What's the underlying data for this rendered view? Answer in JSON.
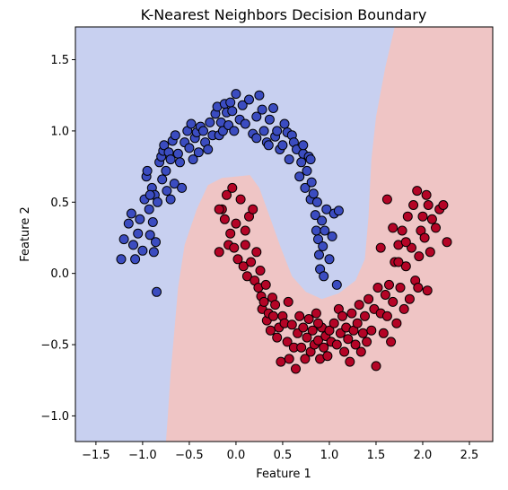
{
  "chart_data": {
    "type": "scatter",
    "title": "K-Nearest Neighbors Decision Boundary",
    "xlabel": "Feature 1",
    "ylabel": "Feature 2",
    "xlim": [
      -1.72,
      2.75
    ],
    "ylim": [
      -1.18,
      1.73
    ],
    "xticks": [
      "−1.5",
      "−1.0",
      "−0.5",
      "0.0",
      "0.5",
      "1.0",
      "1.5",
      "2.0",
      "2.5"
    ],
    "xtick_values": [
      -1.5,
      -1.0,
      -0.5,
      0.0,
      0.5,
      1.0,
      1.5,
      2.0,
      2.5
    ],
    "yticks": [
      "−1.0",
      "−0.5",
      "0.0",
      "0.5",
      "1.0",
      "1.5"
    ],
    "ytick_values": [
      -1.0,
      -0.5,
      0.0,
      0.5,
      1.0,
      1.5
    ],
    "grid": false,
    "colors": {
      "class_0_point": "#3b4cc0",
      "class_1_point": "#b40426",
      "class_0_region": "#c8d0f0",
      "class_1_region": "#efc5c5",
      "point_edge": "#000000"
    },
    "decision_boundary": [
      [
        -0.75,
        -1.18
      ],
      [
        -0.73,
        -1.0
      ],
      [
        -0.7,
        -0.7
      ],
      [
        -0.66,
        -0.4
      ],
      [
        -0.62,
        -0.1
      ],
      [
        -0.55,
        0.2
      ],
      [
        -0.42,
        0.45
      ],
      [
        -0.3,
        0.62
      ],
      [
        -0.15,
        0.67
      ],
      [
        0.15,
        0.69
      ],
      [
        0.25,
        0.6
      ],
      [
        0.35,
        0.42
      ],
      [
        0.48,
        0.18
      ],
      [
        0.6,
        -0.02
      ],
      [
        0.75,
        -0.13
      ],
      [
        0.92,
        -0.18
      ],
      [
        1.1,
        -0.14
      ],
      [
        1.28,
        -0.05
      ],
      [
        1.38,
        0.1
      ],
      [
        1.42,
        0.4
      ],
      [
        1.45,
        0.8
      ],
      [
        1.5,
        1.1
      ],
      [
        1.6,
        1.45
      ],
      [
        1.7,
        1.73
      ]
    ],
    "series": [
      {
        "class": 0,
        "points": [
          [
            -1.23,
            0.1
          ],
          [
            -1.2,
            0.24
          ],
          [
            -1.15,
            0.35
          ],
          [
            -1.12,
            0.42
          ],
          [
            -1.1,
            0.2
          ],
          [
            -1.08,
            0.1
          ],
          [
            -1.05,
            0.28
          ],
          [
            -1.03,
            0.38
          ],
          [
            -1.0,
            0.16
          ],
          [
            -0.98,
            0.52
          ],
          [
            -0.96,
            0.68
          ],
          [
            -0.95,
            0.72
          ],
          [
            -0.93,
            0.45
          ],
          [
            -0.92,
            0.27
          ],
          [
            -0.9,
            0.6
          ],
          [
            -0.89,
            0.36
          ],
          [
            -0.88,
            0.15
          ],
          [
            -0.87,
            0.55
          ],
          [
            -0.86,
            0.22
          ],
          [
            -0.85,
            -0.13
          ],
          [
            -0.84,
            0.5
          ],
          [
            -0.82,
            0.78
          ],
          [
            -0.8,
            0.82
          ],
          [
            -0.79,
            0.66
          ],
          [
            -0.78,
            0.86
          ],
          [
            -0.77,
            0.9
          ],
          [
            -0.75,
            0.72
          ],
          [
            -0.74,
            0.58
          ],
          [
            -0.72,
            0.85
          ],
          [
            -0.7,
            0.8
          ],
          [
            -0.68,
            0.93
          ],
          [
            -0.66,
            0.63
          ],
          [
            -0.65,
            0.97
          ],
          [
            -0.62,
            0.84
          ],
          [
            -0.6,
            0.78
          ],
          [
            -0.58,
            0.6
          ],
          [
            -0.55,
            0.92
          ],
          [
            -0.52,
            1.0
          ],
          [
            -0.5,
            0.88
          ],
          [
            -0.48,
            1.05
          ],
          [
            -0.46,
            0.8
          ],
          [
            -0.44,
            0.95
          ],
          [
            -0.42,
            0.99
          ],
          [
            -0.4,
            0.85
          ],
          [
            -0.38,
            1.03
          ],
          [
            -0.35,
            1.0
          ],
          [
            -0.33,
            0.92
          ],
          [
            -0.3,
            0.87
          ],
          [
            -0.28,
            1.06
          ],
          [
            -0.25,
            0.97
          ],
          [
            -0.22,
            1.12
          ],
          [
            -0.2,
            1.17
          ],
          [
            -0.18,
            0.97
          ],
          [
            -0.16,
            1.06
          ],
          [
            -0.14,
            1.0
          ],
          [
            -0.12,
            1.19
          ],
          [
            -0.1,
            1.13
          ],
          [
            -0.08,
            1.04
          ],
          [
            -0.06,
            1.2
          ],
          [
            -0.04,
            1.14
          ],
          [
            -0.02,
            1.0
          ],
          [
            0.0,
            1.26
          ],
          [
            0.04,
            1.08
          ],
          [
            0.07,
            1.18
          ],
          [
            0.1,
            1.05
          ],
          [
            0.14,
            1.22
          ],
          [
            0.18,
            0.98
          ],
          [
            0.22,
            1.1
          ],
          [
            0.25,
            1.25
          ],
          [
            0.28,
            1.15
          ],
          [
            0.3,
            1.0
          ],
          [
            0.33,
            0.92
          ],
          [
            0.36,
            1.08
          ],
          [
            0.4,
            1.16
          ],
          [
            0.42,
            0.96
          ],
          [
            0.44,
            1.0
          ],
          [
            0.47,
            0.87
          ],
          [
            0.5,
            0.9
          ],
          [
            0.52,
            1.05
          ],
          [
            0.55,
            0.99
          ],
          [
            0.57,
            0.8
          ],
          [
            0.6,
            0.97
          ],
          [
            0.62,
            0.92
          ],
          [
            0.65,
            0.87
          ],
          [
            0.68,
            0.68
          ],
          [
            0.7,
            0.78
          ],
          [
            0.72,
            0.84
          ],
          [
            0.74,
            0.6
          ],
          [
            0.76,
            0.72
          ],
          [
            0.78,
            0.82
          ],
          [
            0.8,
            0.52
          ],
          [
            0.81,
            0.64
          ],
          [
            0.83,
            0.56
          ],
          [
            0.85,
            0.41
          ],
          [
            0.86,
            0.3
          ],
          [
            0.87,
            0.5
          ],
          [
            0.88,
            0.24
          ],
          [
            0.89,
            0.13
          ],
          [
            0.9,
            0.03
          ],
          [
            0.92,
            0.37
          ],
          [
            0.93,
            0.19
          ],
          [
            0.94,
            -0.02
          ],
          [
            0.95,
            0.3
          ],
          [
            0.97,
            0.45
          ],
          [
            1.0,
            0.1
          ],
          [
            1.03,
            0.26
          ],
          [
            1.05,
            0.42
          ],
          [
            1.08,
            -0.08
          ],
          [
            1.1,
            0.44
          ],
          [
            0.8,
            0.8
          ],
          [
            0.72,
            0.9
          ],
          [
            0.35,
            0.9
          ],
          [
            0.22,
            0.95
          ],
          [
            -0.7,
            0.52
          ],
          [
            -0.92,
            0.55
          ]
        ]
      },
      {
        "class": 1,
        "points": [
          [
            -0.18,
            0.15
          ],
          [
            -0.15,
            0.45
          ],
          [
            -0.12,
            0.38
          ],
          [
            -0.1,
            0.55
          ],
          [
            -0.08,
            0.2
          ],
          [
            -0.06,
            0.28
          ],
          [
            -0.04,
            0.6
          ],
          [
            -0.02,
            0.18
          ],
          [
            0.0,
            0.35
          ],
          [
            0.02,
            0.1
          ],
          [
            0.05,
            0.52
          ],
          [
            0.08,
            0.05
          ],
          [
            0.1,
            0.2
          ],
          [
            0.12,
            -0.02
          ],
          [
            0.14,
            0.4
          ],
          [
            0.16,
            0.08
          ],
          [
            0.18,
            0.45
          ],
          [
            0.2,
            -0.05
          ],
          [
            0.22,
            0.15
          ],
          [
            0.24,
            -0.1
          ],
          [
            0.26,
            0.02
          ],
          [
            0.27,
            -0.16
          ],
          [
            0.28,
            -0.25
          ],
          [
            0.3,
            -0.2
          ],
          [
            0.32,
            -0.08
          ],
          [
            0.33,
            -0.33
          ],
          [
            0.35,
            -0.28
          ],
          [
            0.37,
            -0.4
          ],
          [
            0.39,
            -0.17
          ],
          [
            0.4,
            -0.3
          ],
          [
            0.42,
            -0.22
          ],
          [
            0.44,
            -0.45
          ],
          [
            0.46,
            -0.38
          ],
          [
            0.48,
            -0.62
          ],
          [
            0.5,
            -0.3
          ],
          [
            0.52,
            -0.35
          ],
          [
            0.55,
            -0.48
          ],
          [
            0.57,
            -0.6
          ],
          [
            0.6,
            -0.36
          ],
          [
            0.62,
            -0.52
          ],
          [
            0.64,
            -0.67
          ],
          [
            0.66,
            -0.42
          ],
          [
            0.68,
            -0.3
          ],
          [
            0.7,
            -0.52
          ],
          [
            0.72,
            -0.38
          ],
          [
            0.74,
            -0.6
          ],
          [
            0.76,
            -0.45
          ],
          [
            0.78,
            -0.32
          ],
          [
            0.8,
            -0.55
          ],
          [
            0.82,
            -0.4
          ],
          [
            0.84,
            -0.5
          ],
          [
            0.86,
            -0.28
          ],
          [
            0.88,
            -0.47
          ],
          [
            0.9,
            -0.6
          ],
          [
            0.92,
            -0.38
          ],
          [
            0.94,
            -0.52
          ],
          [
            0.96,
            -0.44
          ],
          [
            0.98,
            -0.58
          ],
          [
            1.0,
            -0.4
          ],
          [
            1.02,
            -0.48
          ],
          [
            1.05,
            -0.35
          ],
          [
            1.08,
            -0.5
          ],
          [
            1.1,
            -0.25
          ],
          [
            1.12,
            -0.42
          ],
          [
            1.14,
            -0.3
          ],
          [
            1.16,
            -0.55
          ],
          [
            1.18,
            -0.38
          ],
          [
            1.2,
            -0.46
          ],
          [
            1.22,
            -0.62
          ],
          [
            1.24,
            -0.28
          ],
          [
            1.26,
            -0.4
          ],
          [
            1.28,
            -0.5
          ],
          [
            1.3,
            -0.35
          ],
          [
            1.32,
            -0.22
          ],
          [
            1.34,
            -0.55
          ],
          [
            1.36,
            -0.42
          ],
          [
            1.38,
            -0.3
          ],
          [
            1.4,
            -0.48
          ],
          [
            1.42,
            -0.18
          ],
          [
            1.45,
            -0.4
          ],
          [
            1.48,
            -0.25
          ],
          [
            1.5,
            -0.65
          ],
          [
            1.52,
            -0.1
          ],
          [
            1.55,
            -0.28
          ],
          [
            1.58,
            -0.42
          ],
          [
            1.6,
            -0.15
          ],
          [
            1.62,
            -0.3
          ],
          [
            1.64,
            -0.08
          ],
          [
            1.66,
            -0.48
          ],
          [
            1.68,
            -0.2
          ],
          [
            1.7,
            0.08
          ],
          [
            1.72,
            -0.35
          ],
          [
            1.74,
            0.2
          ],
          [
            1.76,
            -0.1
          ],
          [
            1.78,
            0.3
          ],
          [
            1.8,
            -0.25
          ],
          [
            1.82,
            0.05
          ],
          [
            1.84,
            0.4
          ],
          [
            1.86,
            -0.18
          ],
          [
            1.88,
            0.18
          ],
          [
            1.9,
            0.48
          ],
          [
            1.92,
            -0.05
          ],
          [
            1.94,
            0.58
          ],
          [
            1.96,
            0.12
          ],
          [
            1.98,
            0.3
          ],
          [
            2.0,
            0.4
          ],
          [
            2.02,
            0.25
          ],
          [
            2.04,
            0.55
          ],
          [
            2.06,
            0.48
          ],
          [
            2.1,
            0.38
          ],
          [
            2.14,
            0.32
          ],
          [
            2.18,
            0.45
          ],
          [
            2.22,
            0.48
          ],
          [
            2.26,
            0.22
          ],
          [
            1.55,
            0.18
          ],
          [
            1.62,
            0.52
          ],
          [
            1.68,
            0.32
          ],
          [
            1.74,
            0.08
          ],
          [
            1.82,
            0.22
          ],
          [
            1.95,
            -0.1
          ],
          [
            2.05,
            -0.12
          ],
          [
            2.08,
            0.15
          ],
          [
            -0.18,
            0.45
          ],
          [
            0.1,
            0.3
          ],
          [
            0.56,
            -0.2
          ],
          [
            0.88,
            -0.35
          ]
        ]
      }
    ]
  }
}
